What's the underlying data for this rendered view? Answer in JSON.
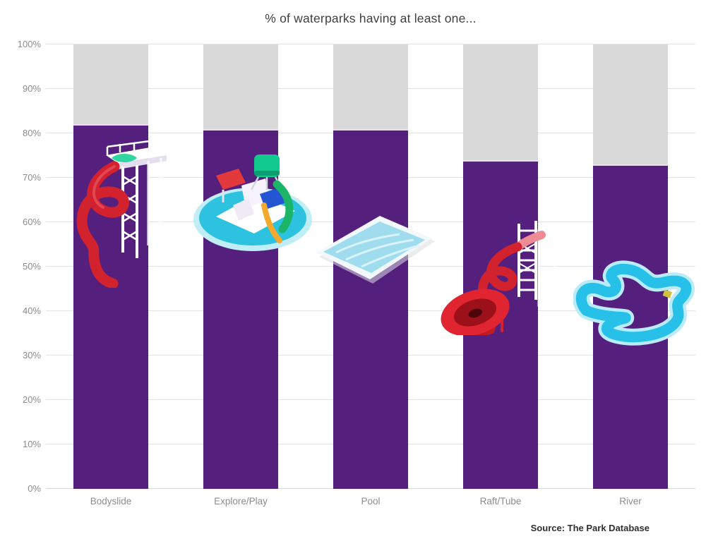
{
  "title": "% of waterparks having at least one...",
  "source": "Source: The Park Database",
  "chart_data": {
    "type": "bar",
    "title": "% of waterparks having at least one...",
    "categories": [
      "Bodyslide",
      "Explore/Play",
      "Pool",
      "Raft/Tube",
      "River"
    ],
    "values": [
      82,
      81,
      81,
      74,
      73
    ],
    "unit": "%",
    "ylim": [
      0,
      100
    ],
    "ytick_step": 10,
    "ytick_labels": [
      "0%",
      "10%",
      "20%",
      "30%",
      "40%",
      "50%",
      "60%",
      "70%",
      "80%",
      "90%",
      "100%"
    ],
    "grid": true,
    "legend": "none",
    "orientation": "vertical",
    "bar_color": "#551F7E",
    "remainder_color": "#D9D9D9",
    "remainder_to": 100,
    "source": "Source: The Park Database",
    "icons": [
      {
        "name": "bodyslide-icon",
        "category": "Bodyslide",
        "colors": [
          "#D2222E",
          "#FFFFFF",
          "#2FD6A0"
        ]
      },
      {
        "name": "exploreplay-icon",
        "category": "Explore/Play",
        "colors": [
          "#2CC2E0",
          "#FFFFFF",
          "#10CA8E",
          "#E23A3C",
          "#2456D4",
          "#1CB567",
          "#F2A92D"
        ]
      },
      {
        "name": "pool-icon",
        "category": "Pool",
        "colors": [
          "#9FDCEE",
          "#F2F8FB"
        ]
      },
      {
        "name": "rafttube-icon",
        "category": "Raft/Tube",
        "colors": [
          "#D2222E",
          "#E02530",
          "#FFFFFF"
        ]
      },
      {
        "name": "river-icon",
        "category": "River",
        "colors": [
          "#27C0E8",
          "#B9ECF8"
        ]
      }
    ]
  }
}
